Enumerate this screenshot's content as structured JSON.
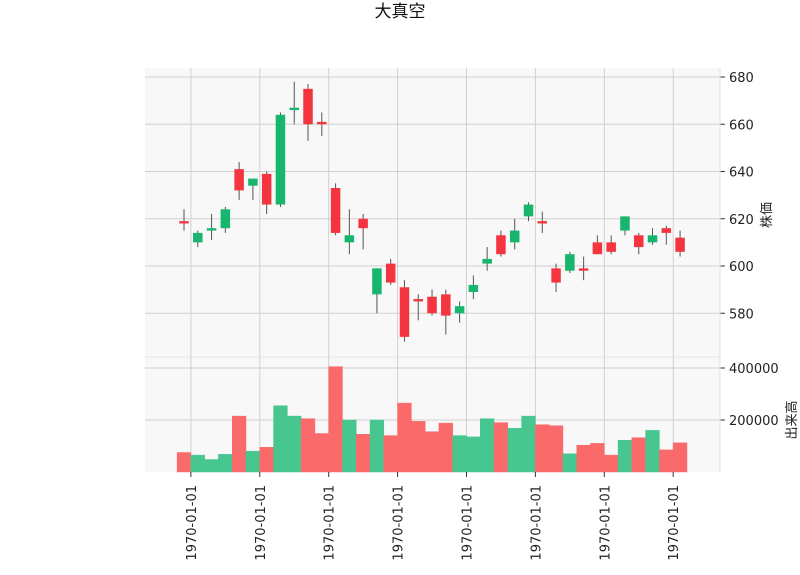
{
  "chart_data": {
    "type": "candlestick",
    "title": "大真空",
    "price_ylabel": "株価",
    "volume_ylabel": "出来高",
    "price_ylim": [
      567,
      684
    ],
    "price_yticks": [
      580,
      600,
      620,
      640,
      660,
      680
    ],
    "volume_ylim": [
      0,
      420000
    ],
    "volume_yticks": [
      200000,
      400000
    ],
    "xtick_labels": [
      "1970-01-01",
      "1970-01-01",
      "1970-01-01",
      "1970-01-01",
      "1970-01-01",
      "1970-01-01",
      "1970-01-01",
      "1970-01-01"
    ],
    "xtick_indices": [
      0.5,
      5.5,
      10.5,
      15.5,
      20.5,
      25.5,
      30.5,
      35.5
    ],
    "grid": true,
    "colors": {
      "up": "#18b56e",
      "down": "#f4353f",
      "up_volume": "#47c690",
      "down_volume": "#fa6a6a",
      "wick": "#555555",
      "panel_bg": "#f8f8f8",
      "grid": "#d0d0d0"
    },
    "candles": [
      {
        "open": 619,
        "high": 624,
        "low": 615,
        "close": 618,
        "volume": 75000
      },
      {
        "open": 610,
        "high": 615,
        "low": 608,
        "close": 614,
        "volume": 65000
      },
      {
        "open": 615,
        "high": 622,
        "low": 611,
        "close": 616,
        "volume": 48000
      },
      {
        "open": 616,
        "high": 625,
        "low": 614,
        "close": 624,
        "volume": 68000
      },
      {
        "open": 641,
        "high": 644,
        "low": 628,
        "close": 632,
        "volume": 215000
      },
      {
        "open": 634,
        "high": 637,
        "low": 628,
        "close": 637,
        "volume": 80000
      },
      {
        "open": 639,
        "high": 640,
        "low": 622,
        "close": 626,
        "volume": 95000
      },
      {
        "open": 626,
        "high": 665,
        "low": 625,
        "close": 664,
        "volume": 255000
      },
      {
        "open": 666,
        "high": 678,
        "low": 660,
        "close": 667,
        "volume": 215000
      },
      {
        "open": 675,
        "high": 677,
        "low": 653,
        "close": 660,
        "volume": 205000
      },
      {
        "open": 661,
        "high": 665,
        "low": 655,
        "close": 660,
        "volume": 148000
      },
      {
        "open": 633,
        "high": 635,
        "low": 613,
        "close": 614,
        "volume": 405000
      },
      {
        "open": 610,
        "high": 624,
        "low": 605,
        "close": 613,
        "volume": 200000
      },
      {
        "open": 620,
        "high": 622,
        "low": 607,
        "close": 616,
        "volume": 145000
      },
      {
        "open": 588,
        "high": 599,
        "low": 580,
        "close": 599,
        "volume": 200000
      },
      {
        "open": 601,
        "high": 603,
        "low": 592,
        "close": 593,
        "volume": 140000
      },
      {
        "open": 591,
        "high": 594,
        "low": 568,
        "close": 570,
        "volume": 265000
      },
      {
        "open": 586,
        "high": 588,
        "low": 577,
        "close": 585,
        "volume": 195000
      },
      {
        "open": 587,
        "high": 590,
        "low": 579,
        "close": 580,
        "volume": 155000
      },
      {
        "open": 588,
        "high": 590,
        "low": 571,
        "close": 579,
        "volume": 188000
      },
      {
        "open": 580,
        "high": 585,
        "low": 576,
        "close": 583,
        "volume": 140000
      },
      {
        "open": 589,
        "high": 596,
        "low": 586,
        "close": 592,
        "volume": 135000
      },
      {
        "open": 601,
        "high": 608,
        "low": 598,
        "close": 603,
        "volume": 205000
      },
      {
        "open": 613,
        "high": 615,
        "low": 604,
        "close": 605,
        "volume": 190000
      },
      {
        "open": 610,
        "high": 620,
        "low": 607,
        "close": 615,
        "volume": 168000
      },
      {
        "open": 621,
        "high": 627,
        "low": 619,
        "close": 626,
        "volume": 215000
      },
      {
        "open": 619,
        "high": 623,
        "low": 614,
        "close": 618,
        "volume": 182000
      },
      {
        "open": 599,
        "high": 601,
        "low": 589,
        "close": 593,
        "volume": 178000
      },
      {
        "open": 598,
        "high": 606,
        "low": 597,
        "close": 605,
        "volume": 70000
      },
      {
        "open": 599,
        "high": 604,
        "low": 594,
        "close": 598,
        "volume": 103000
      },
      {
        "open": 610,
        "high": 613,
        "low": 605,
        "close": 605,
        "volume": 110000
      },
      {
        "open": 610,
        "high": 613,
        "low": 605,
        "close": 606,
        "volume": 65000
      },
      {
        "open": 615,
        "high": 621,
        "low": 613,
        "close": 621,
        "volume": 122000
      },
      {
        "open": 613,
        "high": 614,
        "low": 605,
        "close": 608,
        "volume": 132000
      },
      {
        "open": 610,
        "high": 616,
        "low": 609,
        "close": 613,
        "volume": 160000
      },
      {
        "open": 616,
        "high": 617,
        "low": 609,
        "close": 614,
        "volume": 85000
      },
      {
        "open": 612,
        "high": 615,
        "low": 604,
        "close": 606,
        "volume": 112000
      }
    ]
  }
}
